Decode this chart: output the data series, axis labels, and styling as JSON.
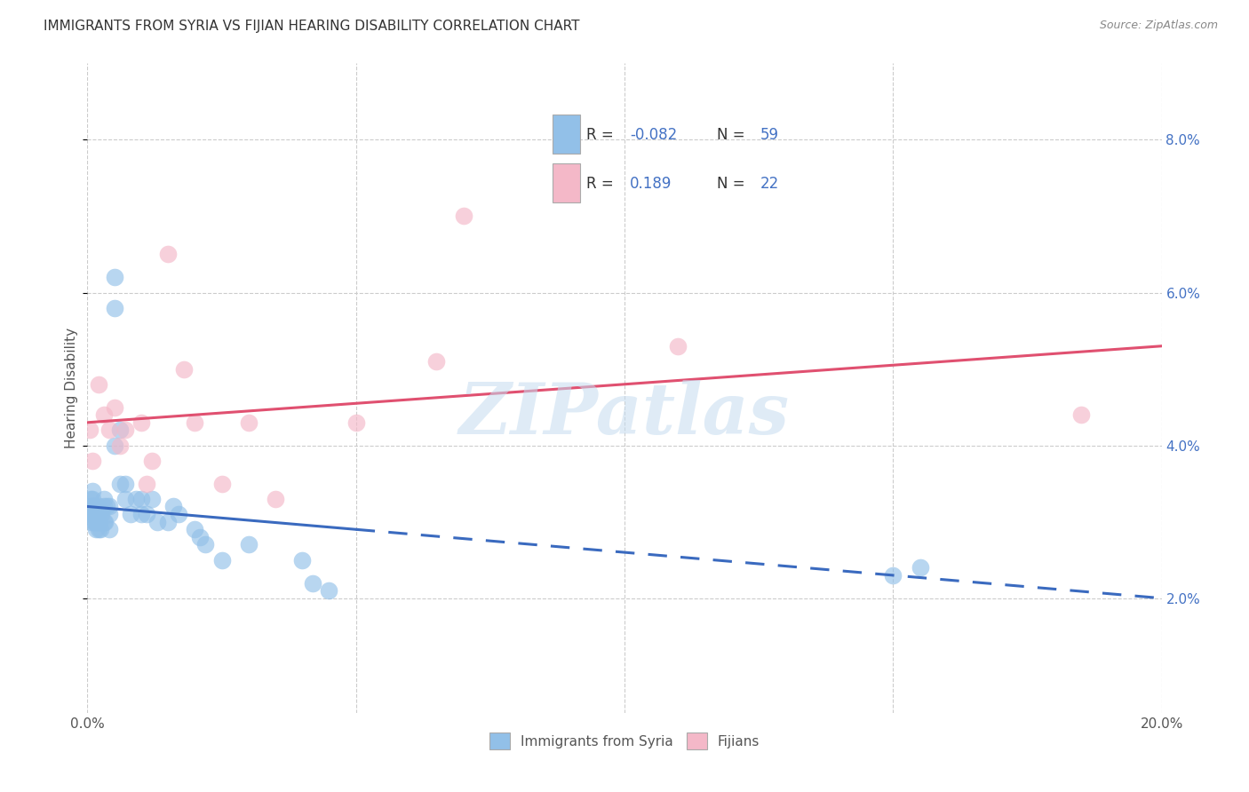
{
  "title": "IMMIGRANTS FROM SYRIA VS FIJIAN HEARING DISABILITY CORRELATION CHART",
  "source": "Source: ZipAtlas.com",
  "ylabel": "Hearing Disability",
  "legend_r_blue": "-0.082",
  "legend_n_blue": "59",
  "legend_r_pink": "0.189",
  "legend_n_pink": "22",
  "blue_color": "#92c0e8",
  "pink_color": "#f4b8c8",
  "blue_line_color": "#3a6abf",
  "pink_line_color": "#e05070",
  "r_n_color": "#4472c4",
  "xlim": [
    0.0,
    0.2
  ],
  "ylim": [
    0.005,
    0.09
  ],
  "xticks": [
    0.0,
    0.05,
    0.1,
    0.15,
    0.2
  ],
  "yticks_right": [
    0.02,
    0.04,
    0.06,
    0.08
  ],
  "watermark": "ZIPatlas",
  "blue_x": [
    0.0005,
    0.0006,
    0.0007,
    0.0008,
    0.0009,
    0.001,
    0.001,
    0.001,
    0.001,
    0.0012,
    0.0013,
    0.0014,
    0.0015,
    0.0015,
    0.0016,
    0.0017,
    0.0018,
    0.002,
    0.002,
    0.002,
    0.002,
    0.0022,
    0.0024,
    0.0025,
    0.003,
    0.003,
    0.003,
    0.0032,
    0.0035,
    0.004,
    0.004,
    0.004,
    0.005,
    0.005,
    0.005,
    0.006,
    0.006,
    0.007,
    0.007,
    0.008,
    0.009,
    0.01,
    0.01,
    0.011,
    0.012,
    0.013,
    0.015,
    0.016,
    0.017,
    0.02,
    0.021,
    0.022,
    0.025,
    0.03,
    0.04,
    0.042,
    0.045,
    0.15,
    0.155
  ],
  "blue_y": [
    0.032,
    0.033,
    0.031,
    0.03,
    0.032,
    0.031,
    0.032,
    0.033,
    0.034,
    0.03,
    0.031,
    0.032,
    0.03,
    0.031,
    0.029,
    0.03,
    0.031,
    0.029,
    0.03,
    0.031,
    0.032,
    0.03,
    0.029,
    0.031,
    0.03,
    0.032,
    0.033,
    0.03,
    0.032,
    0.029,
    0.031,
    0.032,
    0.04,
    0.058,
    0.062,
    0.035,
    0.042,
    0.033,
    0.035,
    0.031,
    0.033,
    0.031,
    0.033,
    0.031,
    0.033,
    0.03,
    0.03,
    0.032,
    0.031,
    0.029,
    0.028,
    0.027,
    0.025,
    0.027,
    0.025,
    0.022,
    0.021,
    0.023,
    0.024
  ],
  "pink_x": [
    0.0005,
    0.001,
    0.002,
    0.003,
    0.004,
    0.005,
    0.006,
    0.007,
    0.01,
    0.011,
    0.012,
    0.015,
    0.018,
    0.02,
    0.025,
    0.03,
    0.035,
    0.05,
    0.065,
    0.07,
    0.11,
    0.185
  ],
  "pink_y": [
    0.042,
    0.038,
    0.048,
    0.044,
    0.042,
    0.045,
    0.04,
    0.042,
    0.043,
    0.035,
    0.038,
    0.065,
    0.05,
    0.043,
    0.035,
    0.043,
    0.033,
    0.043,
    0.051,
    0.07,
    0.053,
    0.044
  ],
  "background_color": "#ffffff",
  "grid_color": "#cccccc",
  "title_fontsize": 11,
  "axis_label_fontsize": 11,
  "tick_fontsize": 11
}
